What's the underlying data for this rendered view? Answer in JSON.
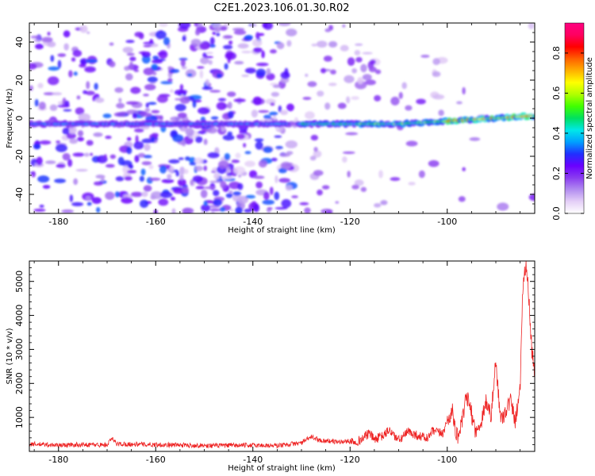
{
  "title": "C2E1.2023.106.01.30.R02",
  "chart_data": [
    {
      "type": "heatmap",
      "name": "spectrogram",
      "xlabel": "Height of straight line (km)",
      "ylabel": "Frequency (Hz)",
      "xlim": [
        -186,
        -82
      ],
      "ylim": [
        -50,
        50
      ],
      "x_ticks": [
        -180,
        -160,
        -140,
        -120,
        -100
      ],
      "y_ticks": [
        -40,
        -20,
        0,
        20,
        40
      ],
      "colorbar": {
        "label": "Normalized spectral amplitude",
        "range": [
          0,
          0.95
        ],
        "ticks": [
          0.0,
          0.2,
          0.4,
          0.6,
          0.8
        ],
        "colors": [
          "#ffffff",
          "#e4cff7",
          "#b28cf0",
          "#8a3cf0",
          "#6a00ff",
          "#2030ff",
          "#00a0ff",
          "#00e8e8",
          "#00e060",
          "#40ff00",
          "#b0ff00",
          "#ffff00",
          "#ffb000",
          "#ff6000",
          "#ff0000",
          "#ff0060",
          "#ff0080"
        ]
      },
      "signal_track": {
        "points": [
          [
            -186,
            -3
          ],
          [
            -170,
            -3
          ],
          [
            -160,
            -3
          ],
          [
            -150,
            -3
          ],
          [
            -140,
            -3
          ],
          [
            -131,
            -3
          ],
          [
            -120,
            -3
          ],
          [
            -110,
            -3
          ],
          [
            -100,
            -1.5
          ],
          [
            -90,
            0
          ],
          [
            -84,
            1
          ]
        ]
      },
      "grid": false
    },
    {
      "type": "line",
      "name": "snr",
      "xlabel": "Height of straight line (km)",
      "ylabel": "SNR (10 * v/v)",
      "xlim": [
        -186,
        -82
      ],
      "ylim": [
        0,
        5600
      ],
      "x_ticks": [
        -180,
        -160,
        -140,
        -120,
        -100
      ],
      "y_ticks": [
        1000,
        2000,
        3000,
        4000,
        5000
      ],
      "line_color": "#ee2222",
      "series": [
        {
          "points": [
            [
              -186,
              220
            ],
            [
              -180,
              180
            ],
            [
              -175,
              200
            ],
            [
              -170,
              190
            ],
            [
              -169,
              380
            ],
            [
              -168,
              220
            ],
            [
              -160,
              200
            ],
            [
              -150,
              170
            ],
            [
              -140,
              180
            ],
            [
              -135,
              170
            ],
            [
              -130,
              250
            ],
            [
              -128,
              430
            ],
            [
              -126,
              320
            ],
            [
              -122,
              280
            ],
            [
              -118,
              320
            ],
            [
              -116,
              540
            ],
            [
              -115,
              350
            ],
            [
              -113,
              470
            ],
            [
              -112,
              640
            ],
            [
              -110,
              320
            ],
            [
              -108,
              580
            ],
            [
              -106,
              460
            ],
            [
              -104,
              380
            ],
            [
              -103,
              600
            ],
            [
              -101,
              520
            ],
            [
              -100,
              880
            ],
            [
              -99,
              1200
            ],
            [
              -98,
              420
            ],
            [
              -97,
              800
            ],
            [
              -96,
              1650
            ],
            [
              -95,
              1100
            ],
            [
              -94,
              520
            ],
            [
              -93,
              900
            ],
            [
              -92,
              1500
            ],
            [
              -91,
              1000
            ],
            [
              -90,
              2650
            ],
            [
              -89,
              900
            ],
            [
              -88,
              1200
            ],
            [
              -87,
              1500
            ],
            [
              -86,
              900
            ],
            [
              -85,
              1900
            ],
            [
              -84.5,
              4700
            ],
            [
              -83.8,
              5600
            ],
            [
              -83.2,
              4500
            ],
            [
              -82.6,
              3000
            ],
            [
              -82,
              2300
            ]
          ]
        }
      ],
      "grid": false
    }
  ]
}
